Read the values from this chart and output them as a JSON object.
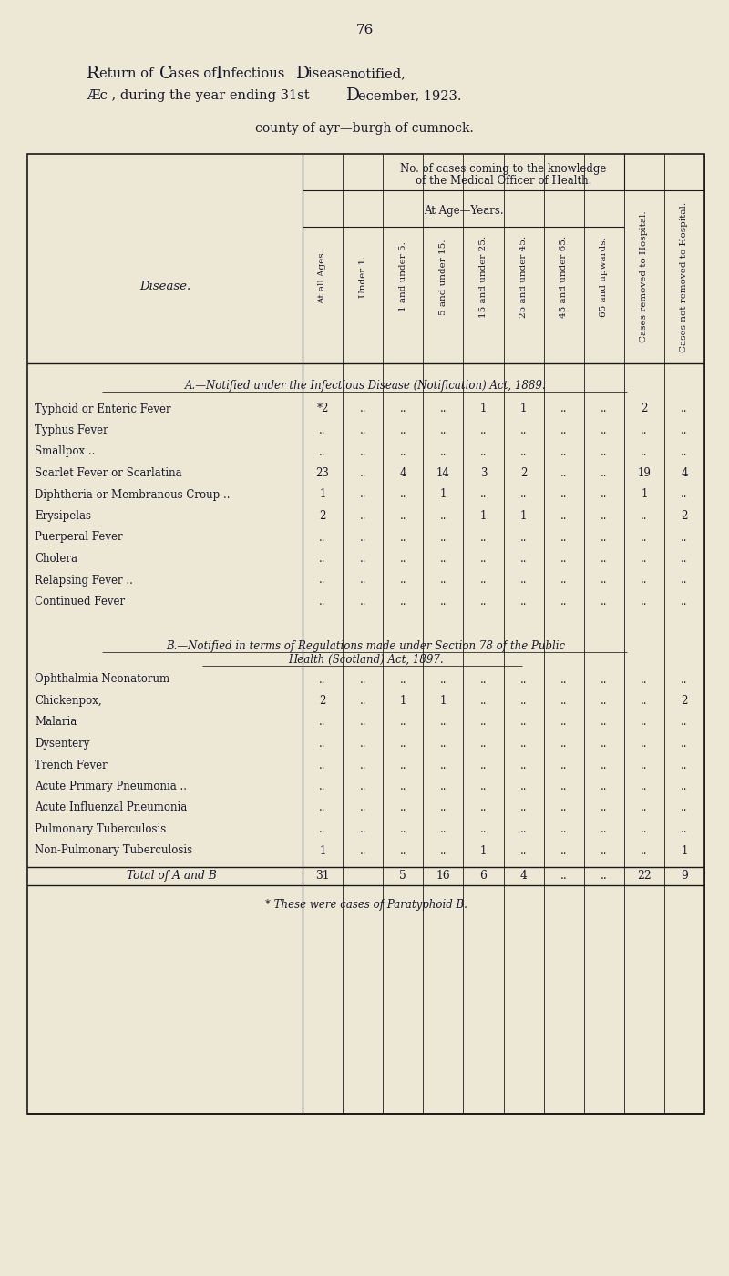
{
  "page_number": "76",
  "title_line1": "Return of Cases of Infectious Disease notified,",
  "title_line2": "Æc , during the year ending 31st December, 1923.",
  "subtitle": "county of ayr—burgh of cumnock.",
  "col_headers": [
    "At all Ages.",
    "Under 1.",
    "1 and under 5.",
    "5 and under 15.",
    "15 and under 25.",
    "25 and under 45.",
    "45 and under 65.",
    "65 and upwards.",
    "Cases removed to Hospital.",
    "Cases not removed to Hospital."
  ],
  "section_a_title": "A.—Notified under the Infectious Disease (Notification) Act, 1889.",
  "section_a_diseases": [
    "Typhoid or Enteric Fever",
    "Typhus Fever",
    "Smallpox ..",
    "Scarlet Fever or Scarlatina",
    "Diphtheria or Membranous Croup ..",
    "Erysipelas",
    "Puerperal Fever",
    "Cholera",
    "Relapsing Fever ..",
    "Continued Fever"
  ],
  "section_a_data": [
    [
      "*2",
      "..",
      "..",
      "..",
      "1",
      "1",
      "..",
      "..",
      "2",
      ".."
    ],
    [
      "..",
      "..",
      "..",
      "..",
      "..",
      "..",
      "..",
      "..",
      "..",
      ".."
    ],
    [
      "..",
      "..",
      "..",
      "..",
      "..",
      "..",
      "..",
      "..",
      "..",
      ".."
    ],
    [
      "23",
      "..",
      "4",
      "14",
      "3",
      "2",
      "..",
      "..",
      "19",
      "4"
    ],
    [
      "1",
      "..",
      "..",
      "1",
      "..",
      "..",
      "..",
      "..",
      "1",
      ".."
    ],
    [
      "2",
      "..",
      "..",
      "..",
      "1",
      "1",
      "..",
      "..",
      "..",
      "2"
    ],
    [
      "..",
      "..",
      "..",
      "..",
      "..",
      "..",
      "..",
      "..",
      "..",
      ".."
    ],
    [
      "..",
      "..",
      "..",
      "..",
      "..",
      "..",
      "..",
      "..",
      "..",
      ".."
    ],
    [
      "..",
      "..",
      "..",
      "..",
      "..",
      "..",
      "..",
      "..",
      "..",
      ".."
    ],
    [
      "..",
      "..",
      "..",
      "..",
      "..",
      "..",
      "..",
      "..",
      "..",
      ".."
    ]
  ],
  "section_b_title1": "B.—Notified in terms of Regulations made under Section 78 of the Public",
  "section_b_title2": "Health (Scotland) Act, 1897.",
  "section_b_diseases": [
    "Ophthalmia Neonatorum",
    "Chickenpox,",
    "Malaria",
    "Dysentery",
    "Trench Fever",
    "Acute Primary Pneumonia ..",
    "Acute Influenzal Pneumonia",
    "Pulmonary Tuberculosis",
    "Non-Pulmonary Tuberculosis"
  ],
  "section_b_data": [
    [
      "..",
      "..",
      "..",
      "..",
      "..",
      "..",
      "..",
      "..",
      "..",
      ".."
    ],
    [
      "2",
      "..",
      "1",
      "1",
      "..",
      "..",
      "..",
      "..",
      "..",
      "2"
    ],
    [
      "..",
      "..",
      "..",
      "..",
      "..",
      "..",
      "..",
      "..",
      "..",
      ".."
    ],
    [
      "..",
      "..",
      "..",
      "..",
      "..",
      "..",
      "..",
      "..",
      "..",
      ".."
    ],
    [
      "..",
      "..",
      "..",
      "..",
      "..",
      "..",
      "..",
      "..",
      "..",
      ".."
    ],
    [
      "..",
      "..",
      "..",
      "..",
      "..",
      "..",
      "..",
      "..",
      "..",
      ".."
    ],
    [
      "..",
      "..",
      "..",
      "..",
      "..",
      "..",
      "..",
      "..",
      "..",
      ".."
    ],
    [
      "..",
      "..",
      "..",
      "..",
      "..",
      "..",
      "..",
      "..",
      "..",
      ".."
    ],
    [
      "1",
      "..",
      "..",
      "..",
      "1",
      "..",
      "..",
      "..",
      "..",
      "1"
    ]
  ],
  "total_row": [
    "31",
    "",
    "5",
    "16",
    "6",
    "4",
    "..",
    "..",
    "22",
    "9"
  ],
  "footnote": "* These were cases of Paratyphoid B.",
  "bg_color": "#ede8d5",
  "text_color": "#1a1a2e",
  "line_color": "#1a1a1a"
}
